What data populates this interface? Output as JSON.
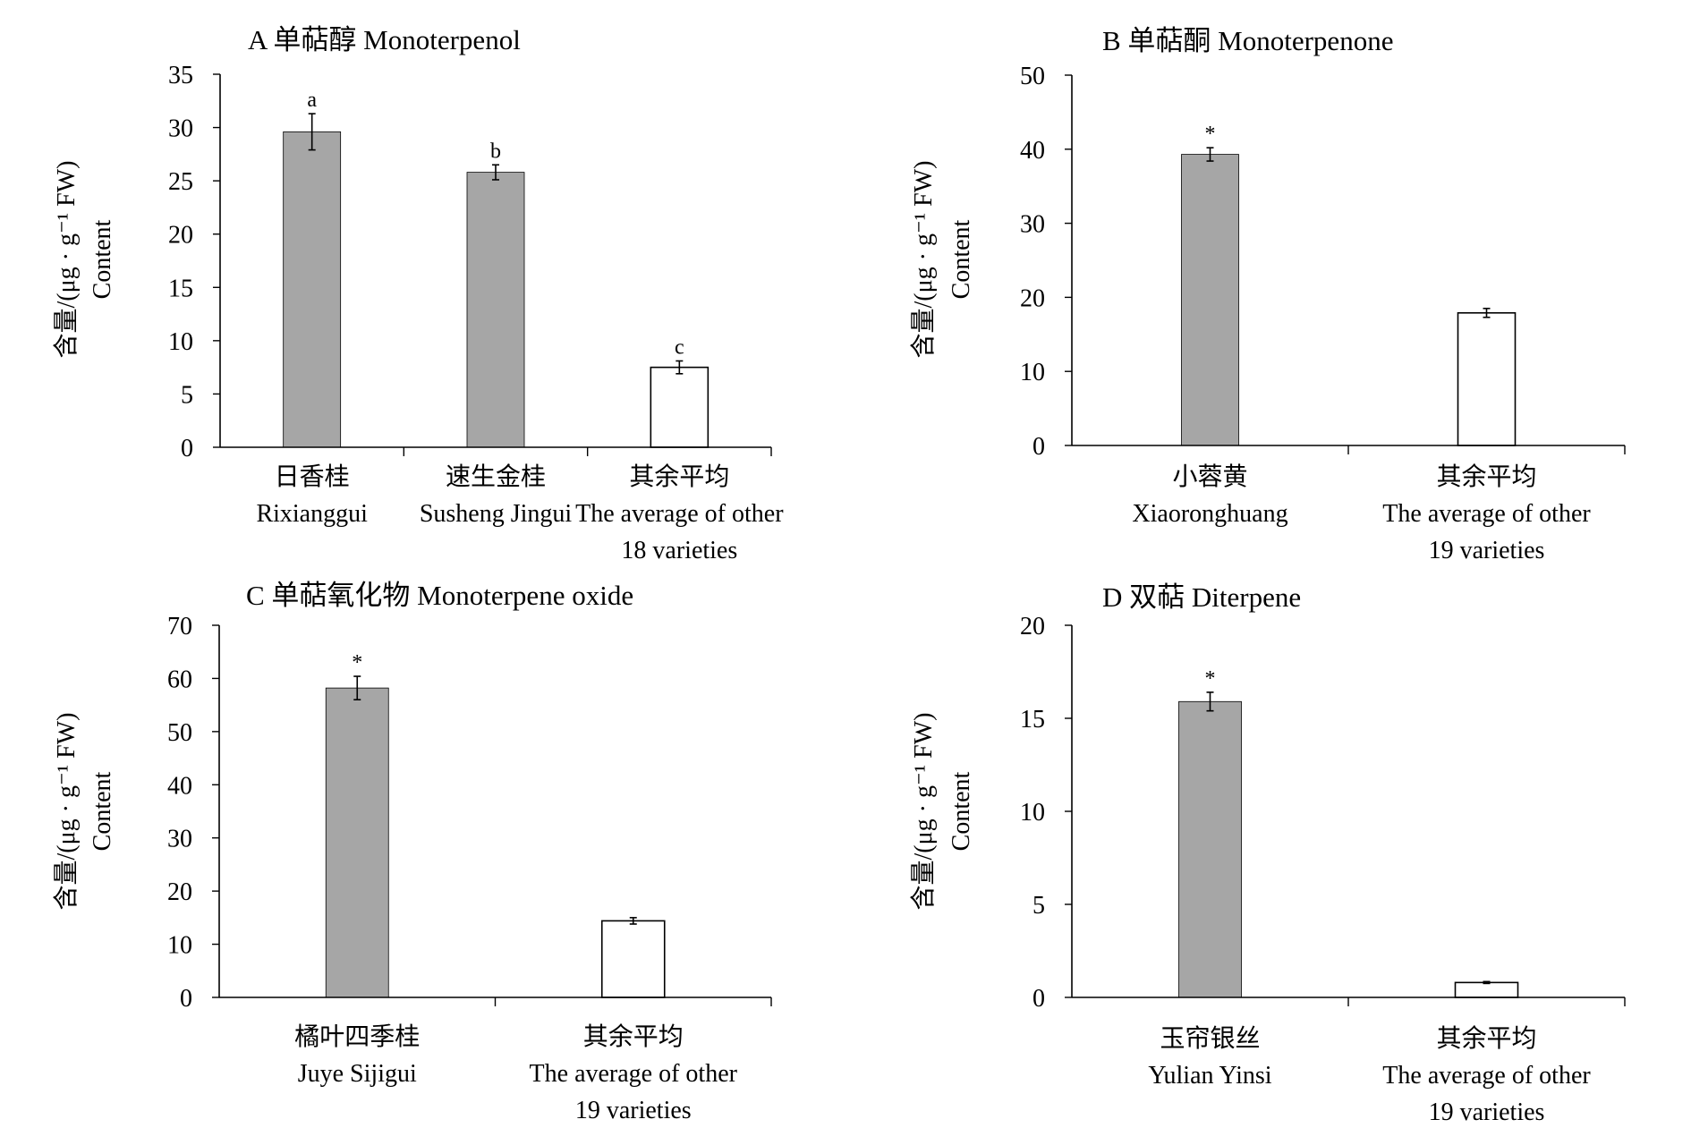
{
  "chart_data": [
    {
      "type": "bar",
      "title": "A 单萜醇 Monoterpenol",
      "ylabel_lines": [
        "含量/(μg · g⁻¹ FW)",
        "Content"
      ],
      "ylim": [
        0,
        35
      ],
      "yticks": [
        0,
        5,
        10,
        15,
        20,
        25,
        30,
        35
      ],
      "categories": [
        [
          "日香桂",
          "Rixianggui"
        ],
        [
          "速生金桂",
          "Susheng Jingui"
        ],
        [
          "其余平均",
          "The average of other",
          "18 varieties"
        ]
      ],
      "values": [
        29.6,
        25.8,
        7.5
      ],
      "errors": [
        1.7,
        0.7,
        0.6
      ],
      "annotations": [
        "a",
        "b",
        "c"
      ],
      "fills": [
        "#a6a6a6",
        "#a6a6a6",
        "#ffffff"
      ]
    },
    {
      "type": "bar",
      "title": "B 单萜酮 Monoterpenone",
      "ylabel_lines": [
        "含量/(μg · g⁻¹ FW)",
        "Content"
      ],
      "ylim": [
        0,
        50
      ],
      "yticks": [
        0,
        10,
        20,
        30,
        40,
        50
      ],
      "categories": [
        [
          "小蓉黄",
          "Xiaoronghuang"
        ],
        [
          "其余平均",
          "The average of other",
          "19 varieties"
        ]
      ],
      "values": [
        39.3,
        17.9
      ],
      "errors": [
        0.9,
        0.6
      ],
      "annotations": [
        "*",
        ""
      ],
      "fills": [
        "#a6a6a6",
        "#ffffff"
      ]
    },
    {
      "type": "bar",
      "title": "C 单萜氧化物  Monoterpene oxide",
      "ylabel_lines": [
        "含量/(μg · g⁻¹ FW)",
        "Content"
      ],
      "ylim": [
        0,
        70
      ],
      "yticks": [
        0,
        10,
        20,
        30,
        40,
        50,
        60,
        70
      ],
      "categories": [
        [
          "橘叶四季桂",
          "Juye Sijigui"
        ],
        [
          "其余平均",
          "The average of other",
          "19 varieties"
        ]
      ],
      "values": [
        58.2,
        14.4
      ],
      "errors": [
        2.2,
        0.6
      ],
      "annotations": [
        "*",
        ""
      ],
      "fills": [
        "#a6a6a6",
        "#ffffff"
      ]
    },
    {
      "type": "bar",
      "title": "D 双萜  Diterpene",
      "ylabel_lines": [
        "含量/(μg · g⁻¹ FW)",
        "Content"
      ],
      "ylim": [
        0,
        20
      ],
      "yticks": [
        0,
        5,
        10,
        15,
        20
      ],
      "categories": [
        [
          "玉帘银丝",
          "Yulian Yinsi"
        ],
        [
          "其余平均",
          "The average of other",
          "19 varieties"
        ]
      ],
      "values": [
        15.9,
        0.8
      ],
      "errors": [
        0.5,
        0.05
      ],
      "annotations": [
        "*",
        ""
      ],
      "fills": [
        "#a6a6a6",
        "#ffffff"
      ]
    }
  ],
  "colors": {
    "bar_highlight": "#a6a6a6",
    "bar_other": "#ffffff",
    "ink": "#000000"
  }
}
